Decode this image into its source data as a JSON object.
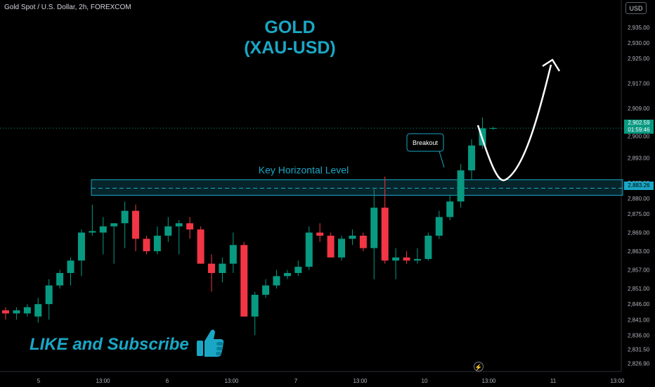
{
  "header": {
    "symbol_line": "Gold Spot / U.S. Dollar, 2h, FOREXCOM",
    "currency": "USD"
  },
  "title": {
    "line1": "GOLD",
    "line2": "(XAU-USD)"
  },
  "annotations": {
    "key_level_label": "Key Horizontal Level",
    "breakout_label": "Breakout",
    "cta": "LIKE and Subscribe"
  },
  "price_tags": {
    "current_price": "2,902.59",
    "countdown": "01:59:46",
    "level_price": "2,883.26"
  },
  "colors": {
    "background": "#000000",
    "bull": "#089981",
    "bear": "#f23645",
    "accent": "#1aa7c5",
    "axis_text": "#b2b5be"
  },
  "icons": {
    "replay": "lightning-icon",
    "like": "thumbs-up-icon"
  },
  "chart_data": {
    "type": "candlestick",
    "title": "GOLD (XAU-USD)",
    "interval": "2h",
    "y_axis": {
      "ticks": [
        "2,935.00",
        "2,930.00",
        "2,925.00",
        "2,917.00",
        "2,909.00",
        "2,900.00",
        "2,893.00",
        "2,885.00",
        "2,880.00",
        "2,875.00",
        "2,869.00",
        "2,863.00",
        "2,857.00",
        "2,851.00",
        "2,846.00",
        "2,841.00",
        "2,836.00",
        "2,831.50",
        "2,826.90"
      ],
      "ylim": [
        2825,
        2937
      ]
    },
    "x_axis": {
      "ticks": [
        "5",
        "13:00",
        "6",
        "13:00",
        "7",
        "13:00",
        "10",
        "13:00",
        "11",
        "13:00"
      ]
    },
    "candles": [
      {
        "o": 2844.0,
        "h": 2845.0,
        "l": 2841.0,
        "c": 2843.0
      },
      {
        "o": 2843.0,
        "h": 2845.0,
        "l": 2841.0,
        "c": 2844.0
      },
      {
        "o": 2843.0,
        "h": 2846.0,
        "l": 2842.0,
        "c": 2845.0
      },
      {
        "o": 2842.0,
        "h": 2848.0,
        "l": 2840.0,
        "c": 2846.0
      },
      {
        "o": 2846.0,
        "h": 2854.0,
        "l": 2841.0,
        "c": 2852.0
      },
      {
        "o": 2852.0,
        "h": 2857.0,
        "l": 2851.0,
        "c": 2856.0
      },
      {
        "o": 2856.0,
        "h": 2861.0,
        "l": 2852.0,
        "c": 2860.0
      },
      {
        "o": 2860.0,
        "h": 2870.0,
        "l": 2855.0,
        "c": 2869.0
      },
      {
        "o": 2869.0,
        "h": 2878.0,
        "l": 2868.0,
        "c": 2869.5
      },
      {
        "o": 2869.0,
        "h": 2874.0,
        "l": 2862.0,
        "c": 2871.0
      },
      {
        "o": 2871.0,
        "h": 2872.0,
        "l": 2859.0,
        "c": 2872.0
      },
      {
        "o": 2872.0,
        "h": 2879.0,
        "l": 2864.0,
        "c": 2876.0
      },
      {
        "o": 2876.0,
        "h": 2878.0,
        "l": 2863.0,
        "c": 2867.0
      },
      {
        "o": 2867.0,
        "h": 2868.0,
        "l": 2862.0,
        "c": 2863.0
      },
      {
        "o": 2863.0,
        "h": 2871.0,
        "l": 2862.0,
        "c": 2868.0
      },
      {
        "o": 2868.0,
        "h": 2874.0,
        "l": 2866.0,
        "c": 2871.0
      },
      {
        "o": 2871.0,
        "h": 2873.0,
        "l": 2862.0,
        "c": 2872.0
      },
      {
        "o": 2872.0,
        "h": 2874.0,
        "l": 2867.0,
        "c": 2870.0
      },
      {
        "o": 2870.0,
        "h": 2871.0,
        "l": 2859.0,
        "c": 2859.0
      },
      {
        "o": 2859.0,
        "h": 2862.0,
        "l": 2850.0,
        "c": 2856.0
      },
      {
        "o": 2856.0,
        "h": 2861.0,
        "l": 2853.0,
        "c": 2859.0
      },
      {
        "o": 2859.0,
        "h": 2869.0,
        "l": 2856.0,
        "c": 2865.0
      },
      {
        "o": 2865.0,
        "h": 2866.0,
        "l": 2842.0,
        "c": 2842.0
      },
      {
        "o": 2842.0,
        "h": 2850.0,
        "l": 2836.0,
        "c": 2849.0
      },
      {
        "o": 2849.0,
        "h": 2854.0,
        "l": 2848.0,
        "c": 2852.0
      },
      {
        "o": 2852.0,
        "h": 2857.0,
        "l": 2851.0,
        "c": 2855.0
      },
      {
        "o": 2855.0,
        "h": 2857.0,
        "l": 2854.0,
        "c": 2856.0
      },
      {
        "o": 2856.0,
        "h": 2860.0,
        "l": 2855.0,
        "c": 2858.0
      },
      {
        "o": 2858.0,
        "h": 2871.0,
        "l": 2857.0,
        "c": 2869.0
      },
      {
        "o": 2869.0,
        "h": 2872.0,
        "l": 2866.0,
        "c": 2868.0
      },
      {
        "o": 2868.0,
        "h": 2869.0,
        "l": 2861.0,
        "c": 2861.0
      },
      {
        "o": 2861.0,
        "h": 2868.0,
        "l": 2860.0,
        "c": 2867.0
      },
      {
        "o": 2867.0,
        "h": 2870.0,
        "l": 2865.0,
        "c": 2868.0
      },
      {
        "o": 2868.0,
        "h": 2869.0,
        "l": 2863.0,
        "c": 2864.0
      },
      {
        "o": 2864.0,
        "h": 2883.0,
        "l": 2854.0,
        "c": 2877.0
      },
      {
        "o": 2877.0,
        "h": 2887.0,
        "l": 2859.0,
        "c": 2860.0
      },
      {
        "o": 2860.0,
        "h": 2864.0,
        "l": 2854.0,
        "c": 2861.0
      },
      {
        "o": 2861.0,
        "h": 2863.0,
        "l": 2859.0,
        "c": 2860.0
      },
      {
        "o": 2860.0,
        "h": 2864.0,
        "l": 2859.0,
        "c": 2860.5
      },
      {
        "o": 2860.5,
        "h": 2869.0,
        "l": 2860.0,
        "c": 2868.0
      },
      {
        "o": 2868.0,
        "h": 2876.0,
        "l": 2867.0,
        "c": 2874.0
      },
      {
        "o": 2874.0,
        "h": 2881.0,
        "l": 2873.0,
        "c": 2879.0
      },
      {
        "o": 2879.0,
        "h": 2891.0,
        "l": 2877.0,
        "c": 2889.0
      },
      {
        "o": 2889.0,
        "h": 2899.0,
        "l": 2886.0,
        "c": 2897.0
      },
      {
        "o": 2897.0,
        "h": 2906.0,
        "l": 2896.0,
        "c": 2902.5
      },
      {
        "o": 2902.5,
        "h": 2903.0,
        "l": 2902.0,
        "c": 2902.6
      }
    ],
    "key_level_zone": {
      "low": 2881.0,
      "high": 2886.0,
      "level": 2883.26
    },
    "current_price": 2902.59
  }
}
